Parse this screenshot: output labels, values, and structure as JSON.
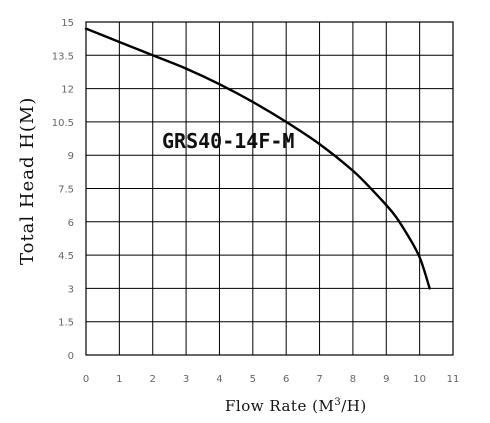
{
  "chart_data": {
    "type": "line",
    "title": "",
    "xlabel": "Flow Rate (M",
    "xlabel_sup": "3",
    "xlabel_end": "/H)",
    "ylabel": "Total Head H(M)",
    "xlim": [
      0,
      11
    ],
    "ylim": [
      0,
      15
    ],
    "x_ticks": [
      "0",
      "1",
      "2",
      "3",
      "4",
      "5",
      "6",
      "7",
      "8",
      "9",
      "10",
      "11"
    ],
    "y_ticks": [
      "0",
      "1.5",
      "3",
      "4.5",
      "6",
      "7.5",
      "9",
      "10.5",
      "12",
      "13.5",
      "15"
    ],
    "grid": true,
    "annotation": "GRS40-14F-M",
    "series": [
      {
        "color": "#000000",
        "x": [
          0,
          1,
          2,
          3,
          4,
          5,
          6,
          7,
          8,
          8.6,
          9.2,
          9.6,
          10,
          10.3
        ],
        "y": [
          14.7,
          14.1,
          13.5,
          12.9,
          12.2,
          11.4,
          10.5,
          9.5,
          8.3,
          7.4,
          6.4,
          5.5,
          4.4,
          3.0
        ]
      }
    ]
  }
}
